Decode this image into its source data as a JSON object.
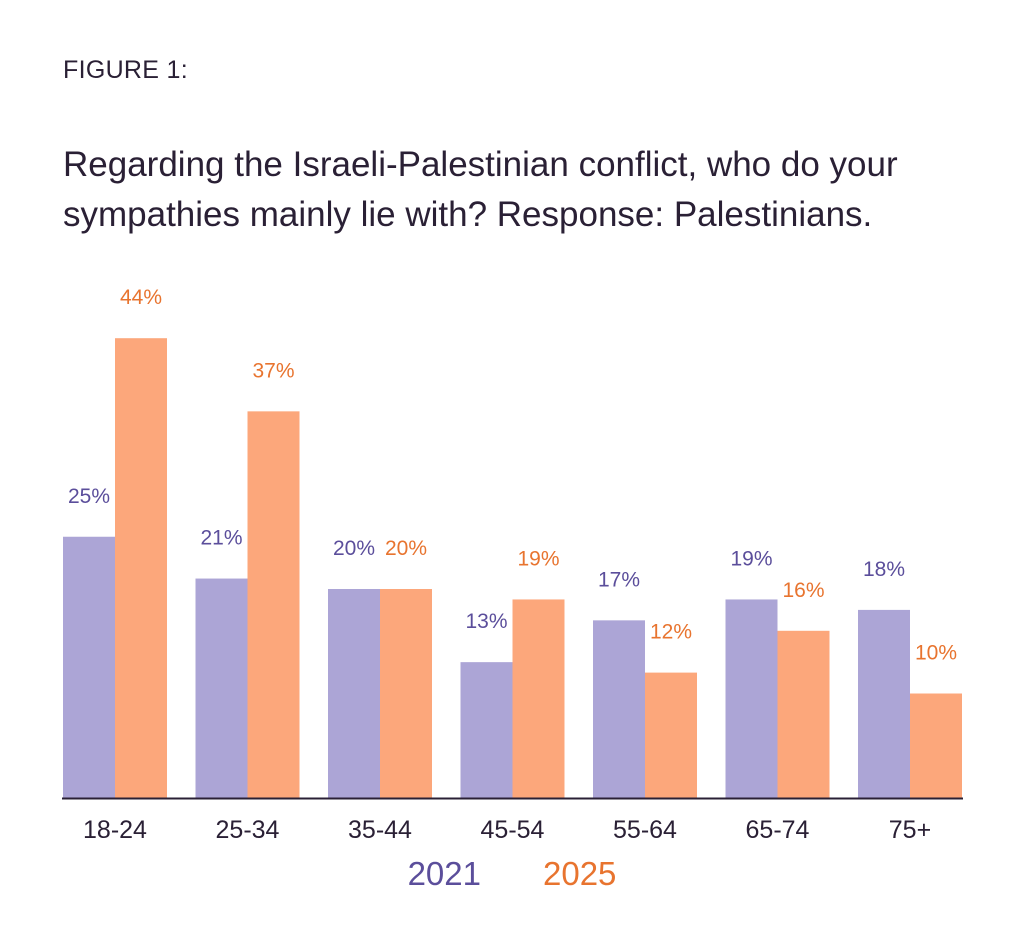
{
  "figure_label": "FIGURE 1:",
  "colors": {
    "series_2021_bar": "#ac a5d6",
    "series_2025_bar": "#fca77b",
    "series_2021_text": "#5b4e9b",
    "series_2025_text": "#e8742f",
    "axis": "#2a2035"
  },
  "chart_data": {
    "type": "bar",
    "title": "Regarding the Israeli-Palestinian conflict, who do your sympathies mainly lie with? Response: Palestinians.",
    "categories": [
      "18-24",
      "25-34",
      "35-44",
      "45-54",
      "55-64",
      "65-74",
      "75+"
    ],
    "series": [
      {
        "name": "2021",
        "values": [
          25,
          21,
          20,
          13,
          17,
          19,
          18
        ],
        "labels": [
          "25%",
          "21%",
          "20%",
          "13%",
          "17%",
          "19%",
          "18%"
        ]
      },
      {
        "name": "2025",
        "values": [
          44,
          37,
          20,
          19,
          12,
          16,
          10
        ],
        "labels": [
          "44%",
          "37%",
          "20%",
          "19%",
          "12%",
          "16%",
          "10%"
        ]
      }
    ],
    "ylim": [
      0,
      44
    ],
    "grid": false,
    "legend_position": "bottom-center",
    "xlabel": "",
    "ylabel": ""
  }
}
